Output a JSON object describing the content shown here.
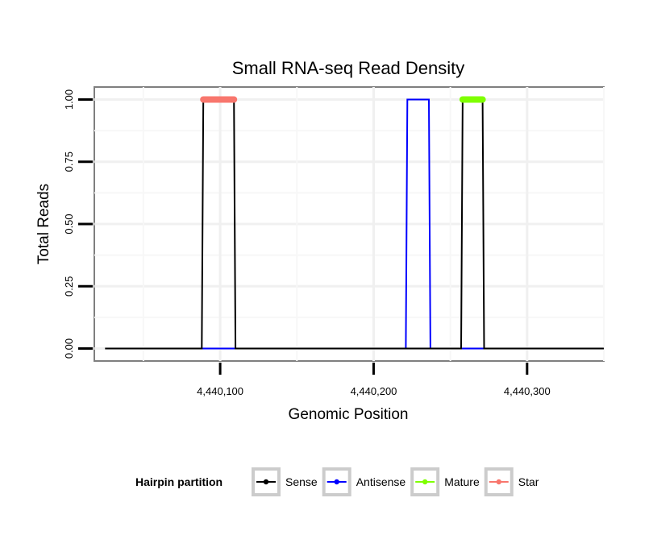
{
  "chart_data": {
    "type": "line",
    "title": "Small RNA-seq Read Density",
    "xlabel": "Genomic Position",
    "ylabel": "Total Reads",
    "xlim": [
      4440018,
      4440350
    ],
    "ylim": [
      -0.05,
      1.05
    ],
    "x_ticks": [
      4440100,
      4440200,
      4440300
    ],
    "x_tick_labels": [
      "4,440,100",
      "4,440,200",
      "4,440,300"
    ],
    "y_ticks": [
      0,
      0.25,
      0.5,
      0.75,
      1.0
    ],
    "y_tick_labels": [
      "0.00",
      "0.25",
      "0.50",
      "0.75",
      "1.00"
    ],
    "grid": true,
    "series": [
      {
        "name": "Sense",
        "color": "#000000",
        "x": [
          4440025,
          4440088,
          4440089,
          4440109,
          4440110,
          4440257,
          4440258,
          4440271,
          4440272,
          4440350
        ],
        "y": [
          0,
          0,
          1,
          1,
          0,
          0,
          1,
          1,
          0,
          0
        ]
      },
      {
        "name": "Antisense",
        "color": "#0000ff",
        "x": [
          4440088,
          4440110,
          4440221,
          4440222,
          4440236,
          4440237,
          4440257,
          4440272
        ],
        "y": [
          0,
          0,
          0,
          1,
          1,
          0,
          0,
          0
        ]
      },
      {
        "name": "Mature",
        "color": "#7fff00",
        "x": [
          4440258,
          4440271
        ],
        "y": [
          1,
          1
        ]
      },
      {
        "name": "Star",
        "color": "#f8766d",
        "x": [
          4440089,
          4440109
        ],
        "y": [
          1,
          1
        ]
      }
    ],
    "legend": {
      "title": "Hairpin partition",
      "position": "bottom",
      "entries": [
        "Sense",
        "Antisense",
        "Mature",
        "Star"
      ]
    }
  }
}
